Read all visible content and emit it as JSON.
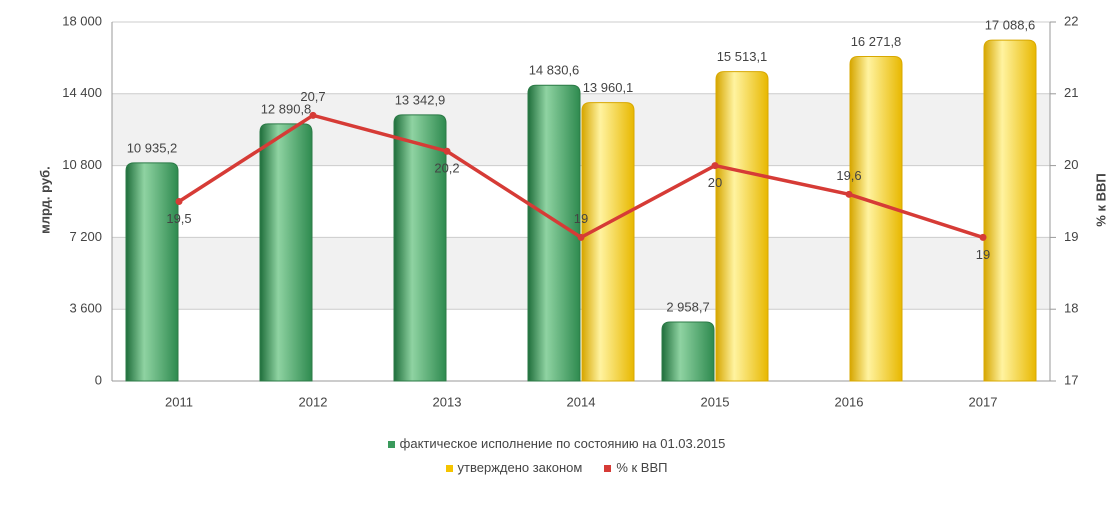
{
  "chart_data": {
    "type": "bar",
    "categories": [
      "2011",
      "2012",
      "2013",
      "2014",
      "2015",
      "2016",
      "2017"
    ],
    "series": [
      {
        "name": "фактическое исполнение по состоянию на 01.03.2015",
        "color": "#3a9a5c",
        "values": [
          10935.2,
          12890.8,
          13342.9,
          14830.6,
          2958.7,
          null,
          null
        ],
        "value_labels": [
          "10 935,2",
          "12 890,8",
          "13 342,9",
          "14 830,6",
          "2 958,7",
          null,
          null
        ]
      },
      {
        "name": "утверждено законом",
        "color": "#f5c400",
        "values": [
          null,
          null,
          null,
          13960.1,
          15513.1,
          16271.8,
          17088.6
        ],
        "value_labels": [
          null,
          null,
          null,
          "13 960,1",
          "15 513,1",
          "16 271,8",
          "17 088,6"
        ]
      },
      {
        "name": "% к ВВП",
        "color": "#d63b36",
        "type": "line",
        "axis": "y2",
        "values": [
          19.5,
          20.7,
          20.2,
          19,
          20,
          19.6,
          19
        ],
        "value_labels": [
          "19,5",
          "20,7",
          "20,2",
          "19",
          "20",
          "19,6",
          "19"
        ]
      }
    ],
    "ylabel": "млрд. руб.",
    "y2label": "% к ВВП",
    "ylim": [
      0,
      18000
    ],
    "yticks": [
      0,
      {
        "value": 3600,
        "label": "3 600"
      },
      {
        "value": 7200,
        "label": "7 200"
      },
      {
        "value": 10800,
        "label": "10 800"
      },
      {
        "value": 14400,
        "label": "14 400"
      },
      {
        "value": 18000,
        "label": "18 000"
      }
    ],
    "y2lim": [
      17,
      22
    ],
    "y2ticks": [
      17,
      18,
      19,
      20,
      21,
      22
    ],
    "grid": true
  }
}
